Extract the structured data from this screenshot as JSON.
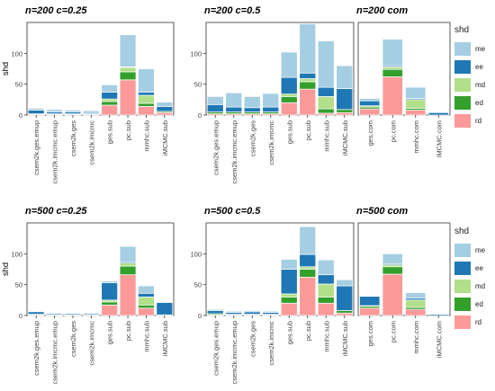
{
  "colors": {
    "me": "#a6cee3",
    "ee": "#1f78b4",
    "md": "#b2df8a",
    "ed": "#33a02c",
    "rd": "#fb9a99"
  },
  "legend": {
    "title": "shd",
    "items": [
      {
        "key": "me",
        "label": "me"
      },
      {
        "key": "ee",
        "label": "ee"
      },
      {
        "key": "md",
        "label": "md"
      },
      {
        "key": "ed",
        "label": "ed"
      },
      {
        "key": "rd",
        "label": "rd"
      }
    ]
  },
  "chart_data": [
    {
      "type": "bar",
      "stacked": true,
      "title": "n=200 c=0.25",
      "xlabel": "",
      "ylabel": "shd",
      "ylim": [
        0,
        150
      ],
      "yticks": [
        0,
        50,
        100
      ],
      "categories": [
        "csem2k.ges.emup",
        "csem2k.imcmc.emup",
        "csem2k.ges",
        "csem2k.imcmc",
        "ges.sub",
        "pc.sub",
        "mmhc.sub",
        "iMCMC.sub"
      ],
      "series": [
        {
          "name": "rd",
          "values": [
            1,
            1,
            1,
            1,
            16,
            57,
            14,
            4
          ]
        },
        {
          "name": "ed",
          "values": [
            1,
            1,
            1,
            1,
            6,
            13,
            5,
            2
          ]
        },
        {
          "name": "md",
          "values": [
            0,
            0,
            0,
            0,
            4,
            7,
            13,
            0
          ]
        },
        {
          "name": "ee",
          "values": [
            6,
            3,
            3,
            2,
            11,
            1,
            5,
            8
          ]
        },
        {
          "name": "me",
          "values": [
            3,
            4,
            3,
            3,
            12,
            52,
            38,
            7
          ]
        }
      ]
    },
    {
      "type": "bar",
      "stacked": true,
      "title": "n=200 c=0.5",
      "xlabel": "",
      "ylabel": "",
      "ylim": [
        0,
        150
      ],
      "yticks": [
        0,
        50,
        100
      ],
      "categories": [
        "csem2k.ges.emup",
        "csem2k.imcmc.emup",
        "csem2k.ges",
        "csem2k.imcmc",
        "ges.sub",
        "pc.sub",
        "mmhc.sub",
        "iMCMC.sub"
      ],
      "series": [
        {
          "name": "rd",
          "values": [
            2,
            2,
            2,
            2,
            20,
            42,
            3,
            4
          ]
        },
        {
          "name": "ed",
          "values": [
            3,
            3,
            3,
            3,
            10,
            12,
            7,
            5
          ]
        },
        {
          "name": "md",
          "values": [
            0,
            0,
            0,
            0,
            4,
            5,
            20,
            0
          ]
        },
        {
          "name": "ee",
          "values": [
            12,
            8,
            7,
            8,
            27,
            9,
            15,
            34
          ]
        },
        {
          "name": "me",
          "values": [
            13,
            23,
            18,
            22,
            41,
            80,
            75,
            37
          ]
        }
      ]
    },
    {
      "type": "bar",
      "stacked": true,
      "title": "n=200 com",
      "xlabel": "",
      "ylabel": "",
      "ylim": [
        0,
        150
      ],
      "yticks": [],
      "categories": [
        "ges.com",
        "pc.com",
        "mmhc.com",
        "iMCMC.com"
      ],
      "series": [
        {
          "name": "rd",
          "values": [
            10,
            62,
            8,
            0
          ]
        },
        {
          "name": "ed",
          "values": [
            3,
            12,
            3,
            0
          ]
        },
        {
          "name": "md",
          "values": [
            2,
            4,
            14,
            0
          ]
        },
        {
          "name": "ee",
          "values": [
            8,
            2,
            2,
            4
          ]
        },
        {
          "name": "me",
          "values": [
            4,
            43,
            18,
            1
          ]
        }
      ]
    },
    {
      "type": "bar",
      "stacked": true,
      "title": "n=500 c=0.25",
      "xlabel": "",
      "ylabel": "shd",
      "ylim": [
        0,
        150
      ],
      "yticks": [
        0,
        50,
        100
      ],
      "categories": [
        "csem2k.ges.emup",
        "csem2k.imcmc.emup",
        "csem2k.ges",
        "csem2k.imcmc",
        "ges.sub",
        "pc.sub",
        "mmhc.sub",
        "iMCMC.sub"
      ],
      "series": [
        {
          "name": "rd",
          "values": [
            1,
            1,
            1,
            1,
            17,
            66,
            12,
            1
          ]
        },
        {
          "name": "ed",
          "values": [
            1,
            0,
            0,
            0,
            5,
            14,
            5,
            0
          ]
        },
        {
          "name": "md",
          "values": [
            0,
            0,
            0,
            0,
            3,
            5,
            13,
            0
          ]
        },
        {
          "name": "ee",
          "values": [
            4,
            2,
            2,
            2,
            28,
            2,
            6,
            20
          ]
        },
        {
          "name": "me",
          "values": [
            0,
            1,
            1,
            1,
            3,
            25,
            12,
            0
          ]
        }
      ]
    },
    {
      "type": "bar",
      "stacked": true,
      "title": "n=500 c=0.5",
      "xlabel": "",
      "ylabel": "",
      "ylim": [
        0,
        150
      ],
      "yticks": [
        0,
        50,
        100
      ],
      "categories": [
        "csem2k.ges.emup",
        "csem2k.imcmc.emup",
        "csem2k.ges",
        "csem2k.imcmc",
        "ges.sub",
        "pc.sub",
        "mmhc.sub",
        "iMCMC.sub"
      ],
      "series": [
        {
          "name": "rd",
          "values": [
            1,
            1,
            1,
            1,
            20,
            62,
            20,
            4
          ]
        },
        {
          "name": "ed",
          "values": [
            2,
            1,
            1,
            1,
            10,
            13,
            10,
            4
          ]
        },
        {
          "name": "md",
          "values": [
            0,
            0,
            0,
            0,
            5,
            4,
            21,
            0
          ]
        },
        {
          "name": "ee",
          "values": [
            5,
            3,
            4,
            3,
            40,
            20,
            15,
            40
          ]
        },
        {
          "name": "me",
          "values": [
            2,
            2,
            2,
            2,
            16,
            45,
            24,
            10
          ]
        }
      ]
    },
    {
      "type": "bar",
      "stacked": true,
      "title": "n=500 com",
      "xlabel": "",
      "ylabel": "",
      "ylim": [
        0,
        150
      ],
      "yticks": [],
      "categories": [
        "ges.com",
        "pc.com",
        "mmhc.com",
        "iMCMC.com"
      ],
      "series": [
        {
          "name": "rd",
          "values": [
            12,
            67,
            10,
            0
          ]
        },
        {
          "name": "ed",
          "values": [
            3,
            12,
            3,
            0
          ]
        },
        {
          "name": "md",
          "values": [
            1,
            3,
            12,
            0
          ]
        },
        {
          "name": "ee",
          "values": [
            15,
            2,
            3,
            2
          ]
        },
        {
          "name": "me",
          "values": [
            0,
            16,
            9,
            0
          ]
        }
      ]
    }
  ]
}
